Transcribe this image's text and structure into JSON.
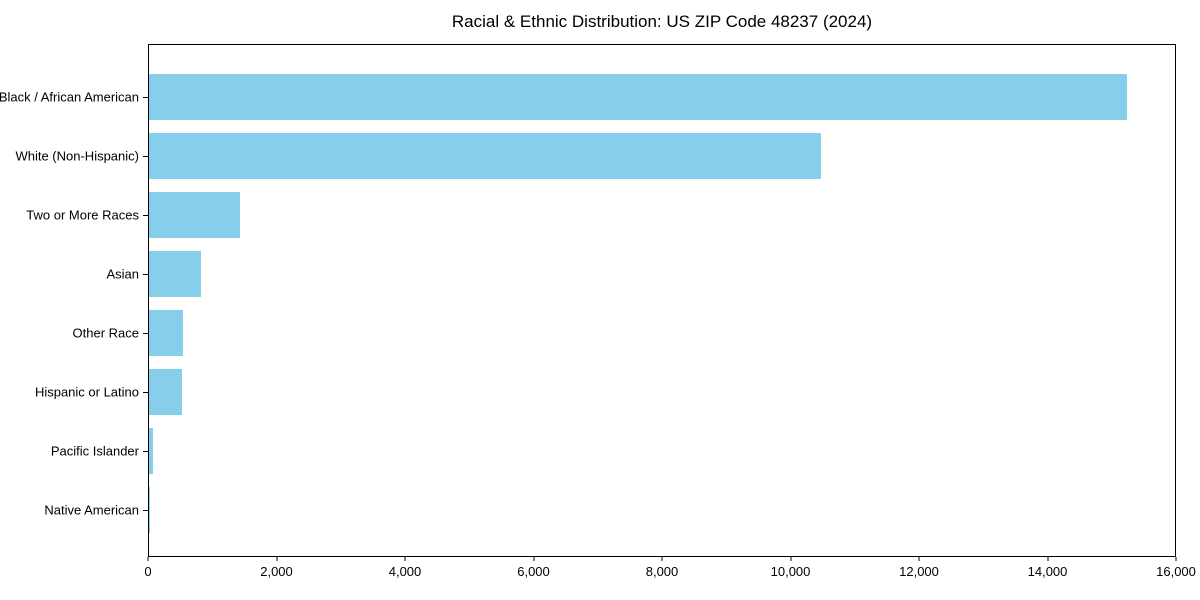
{
  "figure": {
    "background": "#ffffff",
    "text_color": "#000000"
  },
  "chart_data": {
    "type": "bar",
    "orientation": "horizontal",
    "title": "Racial & Ethnic Distribution: US ZIP Code 48237 (2024)",
    "categories": [
      "Black / African American",
      "White (Non-Hispanic)",
      "Two or More Races",
      "Asian",
      "Other Race",
      "Hispanic or Latino",
      "Pacific Islander",
      "Native American"
    ],
    "values": [
      15250,
      10480,
      1420,
      810,
      535,
      510,
      65,
      18
    ],
    "bar_color": "#87CEEB",
    "xlabel": "",
    "ylabel": "",
    "xlim": [
      0,
      16000
    ],
    "xticks": [
      0,
      2000,
      4000,
      6000,
      8000,
      10000,
      12000,
      14000,
      16000
    ],
    "xtick_labels": [
      "0",
      "2,000",
      "4,000",
      "6,000",
      "8,000",
      "10,000",
      "12,000",
      "14,000",
      "16,000"
    ],
    "grid": false,
    "legend": "none"
  }
}
